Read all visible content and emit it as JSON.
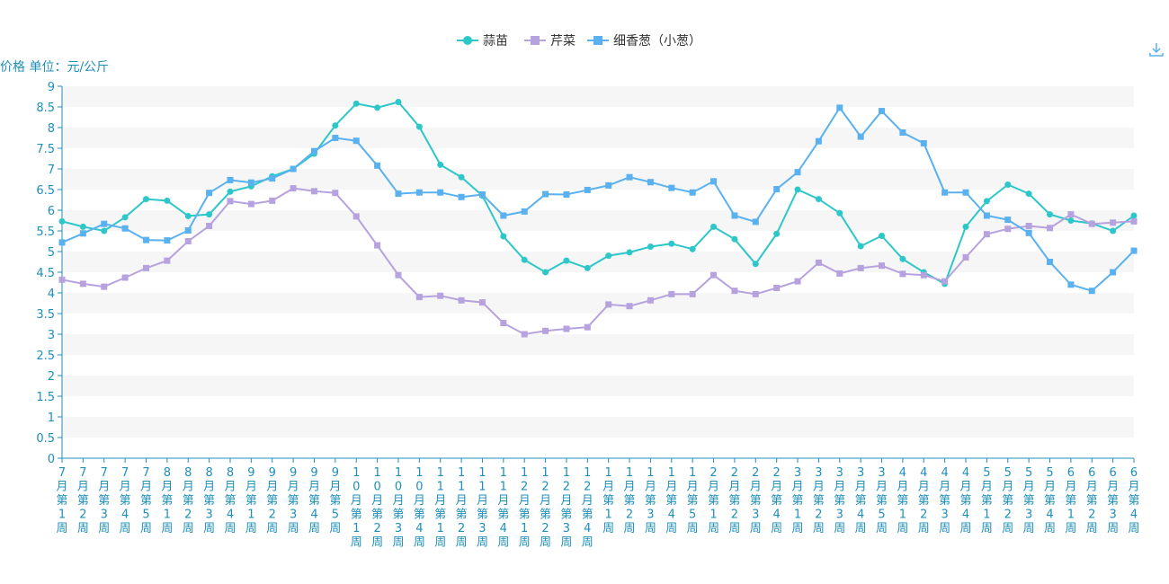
{
  "chart_data": {
    "type": "line",
    "ylabel": "价格 单位：元/公斤",
    "ylim": [
      0,
      9
    ],
    "yticks": [
      "0",
      "0.5",
      "1",
      "1.5",
      "2",
      "2.5",
      "3",
      "3.5",
      "4",
      "4.5",
      "5",
      "5.5",
      "6",
      "6.5",
      "7",
      "7.5",
      "8",
      "8.5",
      "9"
    ],
    "grid": "horizontal-bands",
    "legend_position": "top-center",
    "categories": [
      "7月第1周",
      "7月第2周",
      "7月第3周",
      "7月第4周",
      "7月第5周",
      "8月第1周",
      "8月第2周",
      "8月第3周",
      "8月第4周",
      "9月第1周",
      "9月第2周",
      "9月第3周",
      "9月第4周",
      "9月第5周",
      "10月第1周",
      "10月第2周",
      "10月第3周",
      "10月第4周",
      "11月第1周",
      "11月第2周",
      "11月第3周",
      "11月第4周",
      "12月第1周",
      "12月第2周",
      "12月第3周",
      "12月第4周",
      "1月第1周",
      "1月第2周",
      "1月第3周",
      "1月第4周",
      "1月第5周",
      "2月第1周",
      "2月第2周",
      "2月第3周",
      "2月第4周",
      "3月第1周",
      "3月第2周",
      "3月第3周",
      "3月第4周",
      "3月第5周",
      "4月第1周",
      "4月第2周",
      "4月第3周",
      "4月第4周",
      "5月第1周",
      "5月第2周",
      "5月第3周",
      "5月第4周",
      "6月第1周",
      "6月第2周",
      "6月第3周",
      "6月第4周"
    ],
    "series": [
      {
        "name": "蒜苗",
        "color": "#2ec7c9",
        "marker": "circle",
        "values": [
          5.73,
          5.6,
          5.5,
          5.83,
          6.27,
          6.23,
          5.86,
          5.9,
          6.45,
          6.58,
          6.82,
          7.0,
          7.37,
          8.05,
          8.58,
          8.48,
          8.62,
          8.02,
          7.1,
          6.8,
          6.35,
          5.37,
          4.8,
          4.5,
          4.78,
          4.6,
          4.9,
          4.98,
          5.12,
          5.19,
          5.06,
          5.6,
          5.3,
          4.7,
          5.43,
          6.5,
          6.27,
          5.93,
          5.13,
          5.38,
          4.82,
          4.5,
          4.22,
          5.6,
          6.22,
          6.62,
          6.4,
          5.9,
          5.75,
          5.68,
          5.5,
          5.87
        ]
      },
      {
        "name": "芹菜",
        "color": "#b6a2de",
        "marker": "square",
        "values": [
          4.32,
          4.22,
          4.15,
          4.37,
          4.6,
          4.78,
          5.25,
          5.62,
          6.22,
          6.15,
          6.23,
          6.53,
          6.46,
          6.42,
          5.85,
          5.15,
          4.43,
          3.9,
          3.93,
          3.82,
          3.77,
          3.27,
          3.0,
          3.08,
          3.13,
          3.17,
          3.72,
          3.68,
          3.82,
          3.97,
          3.97,
          4.43,
          4.05,
          3.97,
          4.12,
          4.28,
          4.73,
          4.47,
          4.6,
          4.66,
          4.46,
          4.43,
          4.28,
          4.86,
          5.42,
          5.55,
          5.62,
          5.57,
          5.9,
          5.67,
          5.7,
          5.73
        ]
      },
      {
        "name": "细香葱（小葱）",
        "color": "#5ab1ef",
        "marker": "square",
        "values": [
          5.22,
          5.44,
          5.67,
          5.56,
          5.28,
          5.27,
          5.51,
          6.42,
          6.73,
          6.67,
          6.77,
          7.0,
          7.43,
          7.75,
          7.68,
          7.08,
          6.4,
          6.43,
          6.43,
          6.32,
          6.38,
          5.87,
          5.97,
          6.39,
          6.38,
          6.49,
          6.6,
          6.8,
          6.68,
          6.54,
          6.43,
          6.7,
          5.87,
          5.72,
          6.51,
          6.92,
          7.67,
          8.48,
          7.78,
          8.4,
          7.88,
          7.62,
          6.43,
          6.43,
          5.87,
          5.77,
          5.45,
          4.75,
          4.2,
          4.05,
          4.5,
          5.02
        ]
      }
    ]
  },
  "icons": {
    "download": "download-icon"
  }
}
